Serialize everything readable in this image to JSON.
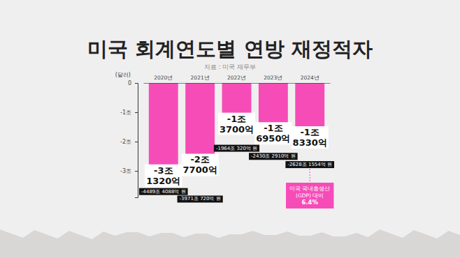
{
  "chart_data": {
    "type": "bar",
    "title": "미국 회계연도별 연방 재정적자",
    "source": "자료 : 미국 재무부",
    "ylabel": "(달러)",
    "categories": [
      "2020년",
      "2021년",
      "2022년",
      "2023년",
      "2024년"
    ],
    "values": [
      -3.132,
      -2.77,
      -1.37,
      -1.695,
      -1.833
    ],
    "value_labels": [
      "-3조 1320억",
      "-2조 7700억",
      "-1조 3700억",
      "-1조 6950억",
      "-1조 8330억"
    ],
    "krw_labels": [
      "-4489조 4088억 원",
      "-3971조 720억 원",
      "-1964조 320억 원",
      "-2430조 2910억 원",
      "-2628조 1554억 원"
    ],
    "color": "#f64cb8",
    "ylim": [
      -3.9,
      0
    ],
    "yticks": [
      0,
      {
        "value": -1,
        "label": "-1조"
      },
      {
        "value": -2,
        "label": "-2조"
      },
      {
        "value": -3,
        "label": "-3조"
      }
    ],
    "grid": false,
    "data_labels": true,
    "annotations": [
      {
        "text": [
          "미국 국내총생산",
          "(GDP) 대비",
          "6.4%"
        ],
        "category": "2024년"
      }
    ]
  }
}
